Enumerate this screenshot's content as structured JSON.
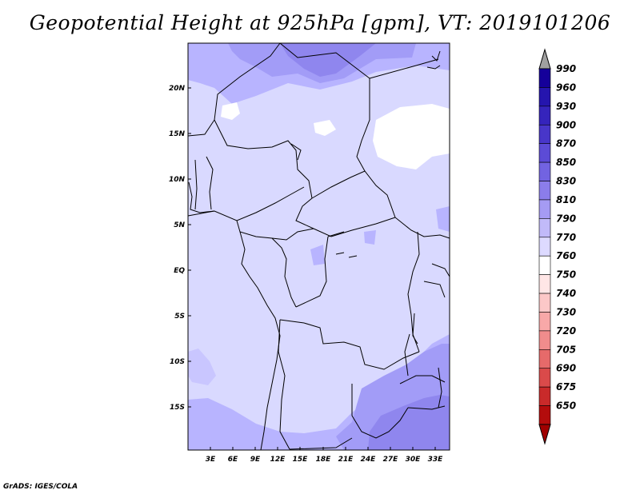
{
  "title": "Geopotential Height at 925hPa [gpm], VT: 2019101206",
  "footer": "GrADS: IGES/COLA",
  "map": {
    "lat_labels": [
      "20N",
      "15N",
      "10N",
      "5N",
      "EQ",
      "5S",
      "10S",
      "15S"
    ],
    "lon_labels": [
      "3E",
      "6E",
      "9E",
      "12E",
      "15E",
      "18E",
      "21E",
      "24E",
      "27E",
      "30E",
      "33E"
    ],
    "units": "gpm",
    "colors": {
      "background": "#d9d9ff",
      "white_patches": "#ffffff",
      "light_purple": "#b8b4ff",
      "mid_purple": "#a29cf7",
      "dark_purple": "#8f86ee"
    }
  },
  "colorbar": {
    "labels": [
      "990",
      "960",
      "930",
      "900",
      "870",
      "850",
      "830",
      "810",
      "790",
      "770",
      "760",
      "750",
      "740",
      "730",
      "720",
      "705",
      "690",
      "675",
      "650"
    ],
    "colors": [
      "#a0a0a0",
      "#15009a",
      "#2515ae",
      "#3524bc",
      "#4836c9",
      "#5c4bd6",
      "#7263e1",
      "#8b7deb",
      "#a59bf3",
      "#c1baf9",
      "#dddaff",
      "#ffffff",
      "#ffe6e6",
      "#fcc8c8",
      "#f8a8a8",
      "#f08c8c",
      "#e66a6a",
      "#da4a4a",
      "#c92a2a",
      "#b30c0c",
      "#a00000"
    ]
  }
}
